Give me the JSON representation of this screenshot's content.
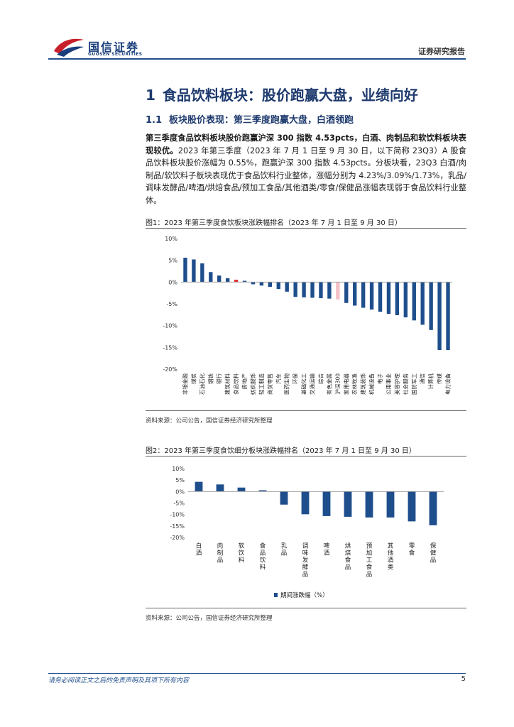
{
  "header": {
    "logo_cn": "国信证券",
    "logo_en": "GUOSEN SECURITIES",
    "report_type": "证券研究报告"
  },
  "section": {
    "number": "1",
    "title": "食品饮料板块：股价跑赢大盘，业绩向好"
  },
  "subsection": {
    "number": "1.1",
    "title": "板块股价表现：第三季度跑赢大盘，白酒领跑"
  },
  "body": {
    "lead_bold": "第三季度食品饮料板块股价跑赢沪深 300 指数 4.53pcts，白酒、肉制品和软饮料板块表现较优。",
    "rest": "2023 年第三季度（2023 年 7 月 1 日至 9 月 30 日，以下简称 23Q3）A 股食品饮料板块股价涨幅为 0.55%，跑赢沪深 300 指数 4.53pcts。分板块看，23Q3 白酒/肉制品/软饮料子板块表现优于食品饮料行业整体，涨幅分别为 4.23%/3.09%/1.73%，乳品/调味发酵品/啤酒/烘焙食品/预加工食品/其他酒类/零食/保健品涨幅表现弱于食品饮料行业整体。"
  },
  "figure1": {
    "title": "图1：2023 年第三季度食饮板块涨跌幅排名（2023 年 7 月 1 日至 9 月 30 日）",
    "source": "资料来源：公司公告，国信证券经济研究所整理"
  },
  "figure2": {
    "title": "图2：2023 年第三季度食饮细分板块涨跌幅排名（2023 年 7 月 1 日至 9 月 30 日）",
    "source": "资料来源：公司公告，国信证券经济研究所整理"
  },
  "footer": {
    "disclaimer": "请务必阅读正文之后的免责声明及其项下所有内容",
    "page": "5"
  },
  "colors": {
    "bar": "#1f4e8c",
    "highlight_food": "#e03030",
    "highlight_index": "#f4c1c6",
    "heading": "#1e3a6e"
  },
  "chart_data": [
    {
      "type": "bar",
      "title": "2023 年第三季度食饮板块涨跌幅排名（2023 年 7 月 1 日至 9 月 30 日）",
      "ylim": [
        -20,
        10
      ],
      "yticks": [
        "10%",
        "5%",
        "0%",
        "-5%",
        "-10%",
        "-15%",
        "-20%"
      ],
      "ytick_values": [
        10,
        5,
        0,
        -5,
        -10,
        -15,
        -20
      ],
      "categories": [
        "非银金融",
        "煤炭",
        "石油石化",
        "钢铁",
        "银行",
        "建筑材料",
        "食品饮料",
        "房地产",
        "纺织服饰",
        "轻工制造",
        "商贸零售",
        "汽车",
        "医药生物",
        "环保",
        "基础化工",
        "交通运输",
        "综合",
        "有色金属",
        "沪深300",
        "家用电器",
        "农林牧渔",
        "建筑装饰",
        "机械设备",
        "电子",
        "公用事业",
        "美容护理",
        "社会服务",
        "国防军工",
        "通信",
        "计算机",
        "传媒",
        "电力设备"
      ],
      "values": [
        5.6,
        5.2,
        4.3,
        2.3,
        1.5,
        0.9,
        0.55,
        0.3,
        -0.5,
        -0.8,
        -1.1,
        -1.6,
        -2.2,
        -3.4,
        -3.5,
        -3.6,
        -3.7,
        -3.8,
        -3.98,
        -4.8,
        -5.4,
        -5.9,
        -6.3,
        -6.8,
        -7.3,
        -7.6,
        -8.1,
        -8.8,
        -9.8,
        -11.0,
        -15.6,
        -15.6
      ],
      "highlights": {
        "食品饮料": "#e03030",
        "沪深300": "#f4c1c6"
      }
    },
    {
      "type": "bar",
      "title": "2023 年第三季度食饮细分板块涨跌幅排名（2023 年 7 月 1 日至 9 月 30 日）",
      "ylim": [
        -20,
        10
      ],
      "yticks": [
        "10%",
        "5%",
        "0%",
        "-5%",
        "-10%",
        "-15%",
        "-20%"
      ],
      "ytick_values": [
        10,
        5,
        0,
        -5,
        -10,
        -15,
        -20
      ],
      "categories": [
        "白酒",
        "肉制品",
        "软饮料",
        "食品饮料",
        "乳品",
        "调味发酵品",
        "啤酒",
        "烘焙食品",
        "预加工食品",
        "其他酒类",
        "零食",
        "保健品"
      ],
      "values": [
        4.23,
        3.09,
        1.73,
        0.55,
        -5.7,
        -9.9,
        -10.7,
        -11.0,
        -11.3,
        -11.3,
        -13.0,
        -14.7
      ],
      "legend": "期间涨跌幅（%）"
    }
  ]
}
